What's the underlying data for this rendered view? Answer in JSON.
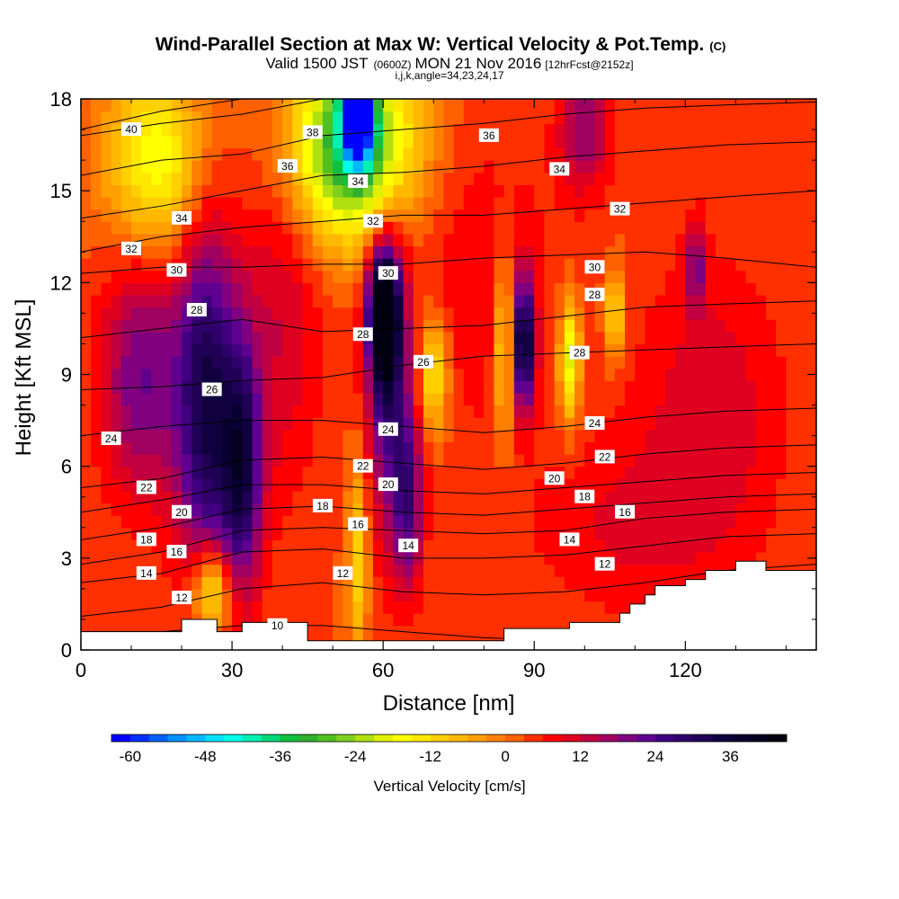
{
  "chart_data": {
    "type": "heatmap",
    "title": "Wind-Parallel Section at Max W: Vertical Velocity & Pot.Temp.",
    "title_mark": "(C)",
    "subtitle_main": "Valid 1500 JST",
    "subtitle_z": "(0600Z)",
    "subtitle_date": "MON 21 Nov 2016",
    "subtitle_fcst": "[12hrFcst@2152z]",
    "subtitle2": "i,j,k,angle=34,23,24,17",
    "xlabel": "Distance [nm]",
    "ylabel": "Height [Kft MSL]",
    "xlim": [
      0,
      146
    ],
    "ylim": [
      0,
      18
    ],
    "xticks": [
      0,
      30,
      60,
      90,
      120
    ],
    "yticks": [
      0,
      3,
      6,
      9,
      12,
      15,
      18
    ],
    "colorbar": {
      "label": "Vertical Velocity [cm/s]",
      "tick_labels": [
        "-60",
        "-48",
        "-36",
        "-24",
        "-12",
        "0",
        "12",
        "24",
        "36"
      ],
      "tick_values": [
        -60,
        -48,
        -36,
        -24,
        -12,
        0,
        12,
        24,
        36
      ],
      "min": -63,
      "max": 45,
      "step": 3,
      "colors": [
        "#0000ff",
        "#0030ff",
        "#0060ff",
        "#0090ff",
        "#00b8ff",
        "#00e0ff",
        "#00ffe8",
        "#00f0b0",
        "#00d878",
        "#10c040",
        "#30b030",
        "#50c020",
        "#80d020",
        "#b0e010",
        "#e0f000",
        "#ffff00",
        "#ffe800",
        "#ffd000",
        "#ffb800",
        "#ffa000",
        "#ff8000",
        "#ff6000",
        "#ff3000",
        "#ff0000",
        "#e00020",
        "#c00040",
        "#a00060",
        "#800080",
        "#600090",
        "#400080",
        "#30006a",
        "#200055",
        "#100040",
        "#080030",
        "#040020",
        "#000010"
      ]
    },
    "w_features": [
      {
        "x": 12,
        "y": 9,
        "rx": 8,
        "ry": 4,
        "w": 18
      },
      {
        "x": 25,
        "y": 8,
        "rx": 6,
        "ry": 6,
        "w": 30
      },
      {
        "x": 32,
        "y": 6,
        "rx": 4,
        "ry": 4,
        "w": 27
      },
      {
        "x": 26,
        "y": 2,
        "rx": 4,
        "ry": 1.5,
        "w": -24
      },
      {
        "x": 54,
        "y": 16.5,
        "rx": 12,
        "ry": 3,
        "w": -40
      },
      {
        "x": 55,
        "y": 17.5,
        "rx": 3,
        "ry": 1.5,
        "w": -54
      },
      {
        "x": 15,
        "y": 16,
        "rx": 10,
        "ry": 3,
        "w": -21
      },
      {
        "x": 60,
        "y": 11,
        "rx": 3,
        "ry": 2,
        "w": 42
      },
      {
        "x": 61,
        "y": 9,
        "rx": 4,
        "ry": 5,
        "w": 24
      },
      {
        "x": 65,
        "y": 5,
        "rx": 3,
        "ry": 3,
        "w": 20
      },
      {
        "x": 55,
        "y": 3,
        "rx": 2,
        "ry": 3,
        "w": -15
      },
      {
        "x": 70,
        "y": 9,
        "rx": 3,
        "ry": 2,
        "w": -18
      },
      {
        "x": 84,
        "y": 10,
        "rx": 2,
        "ry": 3,
        "w": -18
      },
      {
        "x": 88,
        "y": 10,
        "rx": 2,
        "ry": 2,
        "w": 36
      },
      {
        "x": 97,
        "y": 9.5,
        "rx": 2,
        "ry": 2,
        "w": -24
      },
      {
        "x": 106,
        "y": 11,
        "rx": 2,
        "ry": 1.5,
        "w": -15
      },
      {
        "x": 122,
        "y": 12.5,
        "rx": 2,
        "ry": 1.5,
        "w": 15
      },
      {
        "x": 100,
        "y": 17,
        "rx": 5,
        "ry": 2,
        "w": 15
      },
      {
        "x": 80,
        "y": 12,
        "rx": 15,
        "ry": 5,
        "w": 6
      },
      {
        "x": 40,
        "y": 11,
        "rx": 8,
        "ry": 6,
        "w": 9
      },
      {
        "x": 125,
        "y": 8,
        "rx": 15,
        "ry": 5,
        "w": 8
      },
      {
        "x": 108,
        "y": 4,
        "rx": 20,
        "ry": 3,
        "w": 6
      }
    ],
    "theta_contours": [
      {
        "level": 10,
        "y": [
          0.6,
          0.6,
          0.8,
          0.8,
          0.6,
          0.4,
          0.3,
          0.3,
          0.3,
          0.3
        ]
      },
      {
        "level": 12,
        "y": [
          1.1,
          1.4,
          2.0,
          2.2,
          1.9,
          1.8,
          1.9,
          2.2,
          2.6,
          2.8
        ]
      },
      {
        "level": 14,
        "y": [
          2.2,
          2.5,
          3.2,
          3.3,
          3.0,
          3.0,
          3.1,
          3.4,
          3.7,
          3.8
        ]
      },
      {
        "level": 16,
        "y": [
          2.8,
          3.2,
          3.9,
          4.0,
          3.9,
          3.8,
          3.9,
          4.3,
          4.5,
          4.6
        ]
      },
      {
        "level": 18,
        "y": [
          3.6,
          4.0,
          4.6,
          4.7,
          4.5,
          4.4,
          4.6,
          4.8,
          5.0,
          5.1
        ]
      },
      {
        "level": 20,
        "y": [
          4.5,
          4.9,
          5.4,
          5.4,
          5.2,
          5.1,
          5.3,
          5.5,
          5.7,
          5.8
        ]
      },
      {
        "level": 22,
        "y": [
          5.3,
          5.6,
          6.2,
          6.3,
          6.1,
          5.9,
          6.1,
          6.4,
          6.6,
          6.7
        ]
      },
      {
        "level": 24,
        "y": [
          7.0,
          7.3,
          7.5,
          7.5,
          7.3,
          7.1,
          7.3,
          7.6,
          7.8,
          7.9
        ]
      },
      {
        "level": 26,
        "y": [
          8.5,
          8.6,
          8.8,
          8.9,
          9.3,
          9.6,
          9.7,
          9.8,
          9.9,
          10.0
        ]
      },
      {
        "level": 28,
        "y": [
          10.2,
          10.5,
          10.8,
          10.4,
          10.5,
          10.6,
          10.9,
          11.2,
          11.3,
          11.4
        ]
      },
      {
        "level": 30,
        "y": [
          12.3,
          12.5,
          12.5,
          12.6,
          12.6,
          12.8,
          12.9,
          13.0,
          12.8,
          12.5
        ]
      },
      {
        "level": 32,
        "y": [
          13.0,
          13.5,
          13.8,
          14.0,
          14.2,
          14.2,
          14.4,
          14.6,
          14.8,
          15.0
        ]
      },
      {
        "level": 34,
        "y": [
          14.1,
          14.5,
          15.0,
          15.5,
          15.6,
          15.8,
          16.1,
          16.3,
          16.5,
          16.6
        ]
      },
      {
        "level": 36,
        "y": [
          15.5,
          16.0,
          16.2,
          16.8,
          17.0,
          17.2,
          17.5,
          17.7,
          17.8,
          17.9
        ]
      },
      {
        "level": 38,
        "y": [
          16.8,
          17.2,
          17.5,
          18.0,
          18.0,
          18.0,
          18.0,
          18.0,
          18.0,
          18.0
        ]
      },
      {
        "level": 40,
        "y": [
          17.0,
          17.6,
          18.0,
          18.0,
          18.0,
          18.0,
          18.0,
          18.0,
          18.0,
          18.0
        ]
      }
    ],
    "theta_contour_x": [
      0,
      16,
      32,
      48,
      64,
      80,
      96,
      112,
      128,
      146
    ],
    "contour_labels": [
      {
        "text": "40",
        "x": 10,
        "y": 17.0
      },
      {
        "text": "38",
        "x": 46,
        "y": 16.9
      },
      {
        "text": "36",
        "x": 41,
        "y": 15.8
      },
      {
        "text": "36",
        "x": 81,
        "y": 16.8
      },
      {
        "text": "34",
        "x": 55,
        "y": 15.3
      },
      {
        "text": "34",
        "x": 95,
        "y": 15.7
      },
      {
        "text": "34",
        "x": 20,
        "y": 14.1
      },
      {
        "text": "32",
        "x": 58,
        "y": 14.0
      },
      {
        "text": "32",
        "x": 107,
        "y": 14.4
      },
      {
        "text": "32",
        "x": 10,
        "y": 13.1
      },
      {
        "text": "30",
        "x": 19,
        "y": 12.4
      },
      {
        "text": "30",
        "x": 61,
        "y": 12.3
      },
      {
        "text": "30",
        "x": 102,
        "y": 12.5
      },
      {
        "text": "28",
        "x": 23,
        "y": 11.1
      },
      {
        "text": "28",
        "x": 102,
        "y": 11.6
      },
      {
        "text": "28",
        "x": 56,
        "y": 10.3
      },
      {
        "text": "28",
        "x": 99,
        "y": 9.7
      },
      {
        "text": "26",
        "x": 68,
        "y": 9.4
      },
      {
        "text": "26",
        "x": 26,
        "y": 8.5
      },
      {
        "text": "24",
        "x": 6,
        "y": 6.9
      },
      {
        "text": "24",
        "x": 61,
        "y": 7.2
      },
      {
        "text": "24",
        "x": 102,
        "y": 7.4
      },
      {
        "text": "22",
        "x": 56,
        "y": 6.0
      },
      {
        "text": "22",
        "x": 104,
        "y": 6.3
      },
      {
        "text": "22",
        "x": 13,
        "y": 5.3
      },
      {
        "text": "20",
        "x": 61,
        "y": 5.4
      },
      {
        "text": "20",
        "x": 94,
        "y": 5.6
      },
      {
        "text": "20",
        "x": 20,
        "y": 4.5
      },
      {
        "text": "18",
        "x": 100,
        "y": 5.0
      },
      {
        "text": "18",
        "x": 48,
        "y": 4.7
      },
      {
        "text": "18",
        "x": 13,
        "y": 3.6
      },
      {
        "text": "16",
        "x": 55,
        "y": 4.1
      },
      {
        "text": "16",
        "x": 108,
        "y": 4.5
      },
      {
        "text": "16",
        "x": 19,
        "y": 3.2
      },
      {
        "text": "14",
        "x": 65,
        "y": 3.4
      },
      {
        "text": "14",
        "x": 97,
        "y": 3.6
      },
      {
        "text": "14",
        "x": 13,
        "y": 2.5
      },
      {
        "text": "12",
        "x": 52,
        "y": 2.5
      },
      {
        "text": "12",
        "x": 104,
        "y": 2.8
      },
      {
        "text": "12",
        "x": 20,
        "y": 1.7
      },
      {
        "text": "10",
        "x": 39,
        "y": 0.8
      }
    ],
    "terrain": [
      [
        0,
        0.6
      ],
      [
        20,
        0.6
      ],
      [
        20,
        1.0
      ],
      [
        27,
        1.0
      ],
      [
        27,
        0.6
      ],
      [
        32,
        0.6
      ],
      [
        32,
        0.9
      ],
      [
        45,
        0.9
      ],
      [
        45,
        0.3
      ],
      [
        84,
        0.3
      ],
      [
        84,
        0.7
      ],
      [
        97,
        0.7
      ],
      [
        97,
        0.9
      ],
      [
        107,
        0.9
      ],
      [
        107,
        1.2
      ],
      [
        109,
        1.2
      ],
      [
        109,
        1.5
      ],
      [
        112,
        1.5
      ],
      [
        112,
        1.8
      ],
      [
        114,
        1.8
      ],
      [
        114,
        2.1
      ],
      [
        120,
        2.1
      ],
      [
        120,
        2.3
      ],
      [
        124,
        2.3
      ],
      [
        124,
        2.6
      ],
      [
        130,
        2.6
      ],
      [
        130,
        2.9
      ],
      [
        136,
        2.9
      ],
      [
        136,
        2.6
      ],
      [
        146,
        2.6
      ]
    ]
  }
}
